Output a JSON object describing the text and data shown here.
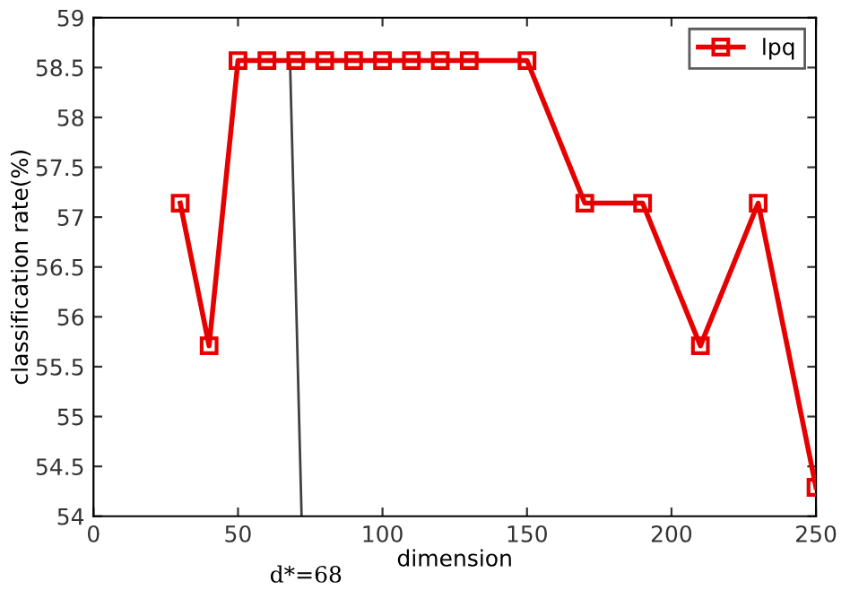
{
  "chart_data": {
    "type": "line",
    "xlabel": "dimension",
    "ylabel": "classification rate(%)",
    "xlim": [
      0,
      250
    ],
    "xticks": [
      0,
      50,
      100,
      150,
      200,
      250
    ],
    "ylim": [
      54,
      59
    ],
    "yticks": [
      54,
      54.5,
      55,
      55.5,
      56,
      56.5,
      57,
      57.5,
      58,
      58.5,
      59
    ],
    "legend": "top right",
    "grid": false,
    "marker": "square",
    "line_style": "solid",
    "series": [
      {
        "name": "lpq",
        "color": "#e60000",
        "x": [
          30,
          40,
          50,
          60,
          70,
          80,
          90,
          100,
          110,
          120,
          130,
          150,
          170,
          190,
          210,
          230,
          250
        ],
        "values": [
          57.14,
          55.71,
          58.57,
          58.57,
          58.57,
          58.57,
          58.57,
          58.57,
          58.57,
          58.57,
          58.57,
          58.57,
          57.14,
          57.14,
          55.71,
          57.14,
          54.29
        ]
      },
      {
        "color": "#404040",
        "marker": "none",
        "x": [
          68,
          72
        ],
        "values": [
          58.57,
          54
        ]
      }
    ],
    "annotations": [
      "d*=68"
    ]
  }
}
